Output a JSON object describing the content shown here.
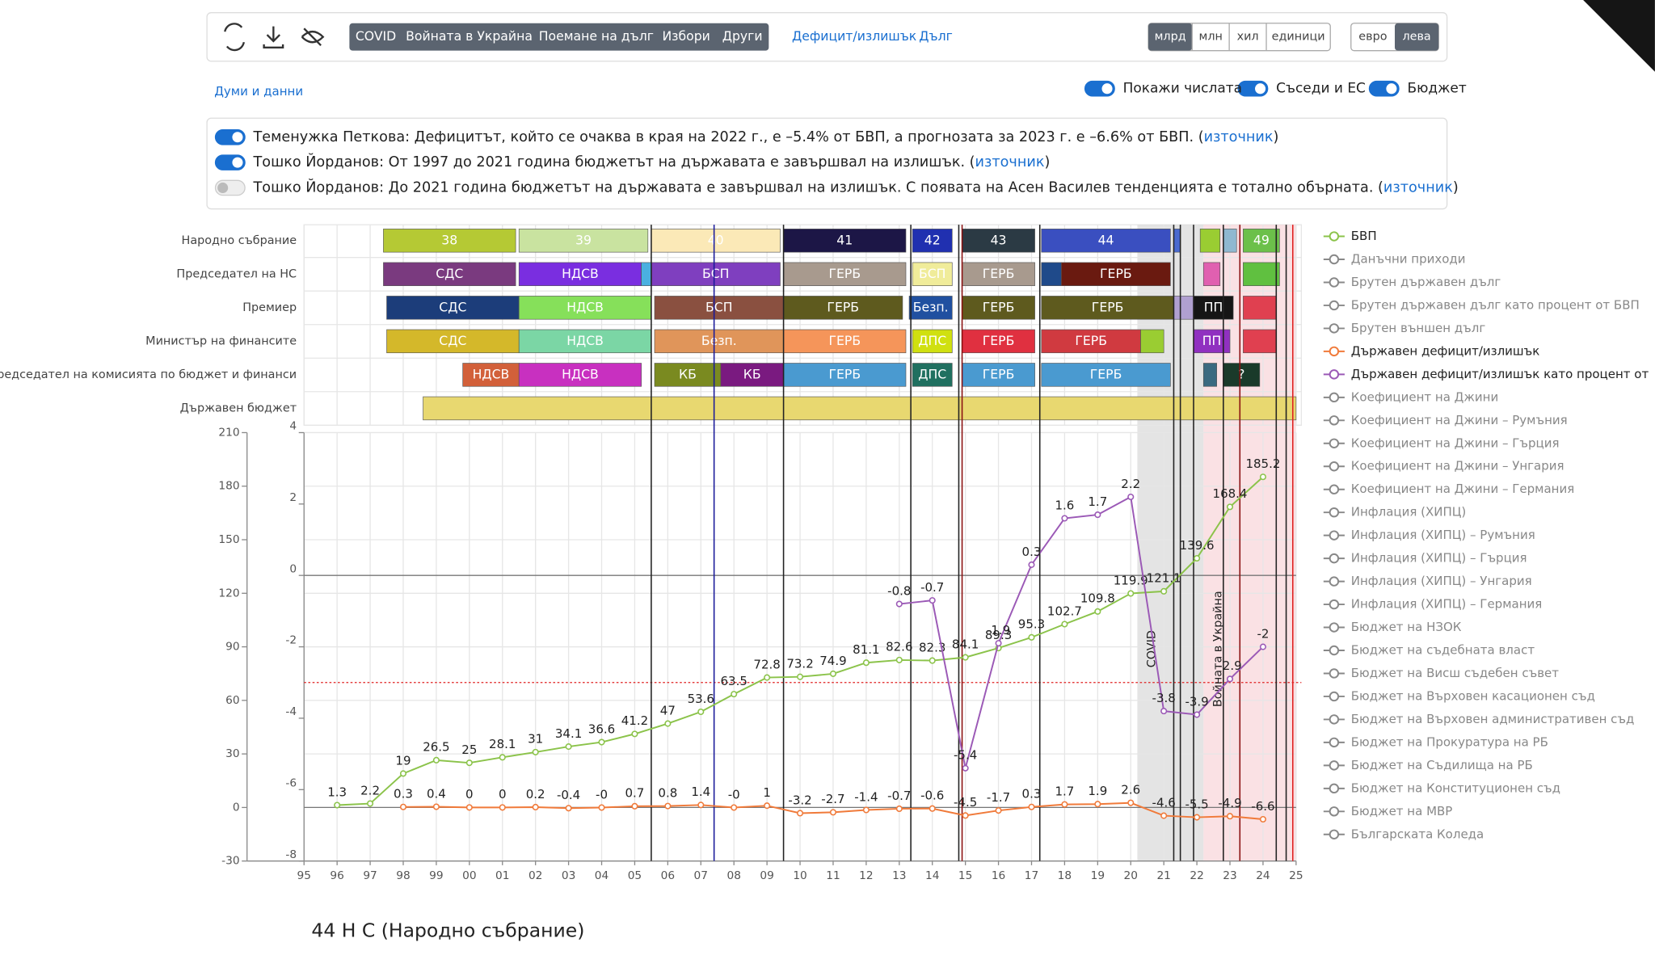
{
  "toolbar": {
    "topics": [
      "COVID",
      "Войната в Украйна",
      "Поемане на дълг",
      "Избори",
      "Други"
    ],
    "links": [
      "Дефицит/излишък",
      "Дълг"
    ],
    "units": [
      "млрд",
      "млн",
      "хил",
      "единици"
    ],
    "unit_active": 0,
    "currencies": [
      "евро",
      "лева"
    ],
    "currency_active": 1
  },
  "words_link": "Думи и данни",
  "toggles": [
    {
      "label": "Покажи числата",
      "on": true
    },
    {
      "label": "Съседи и ЕС",
      "on": true
    },
    {
      "label": "Бюджет",
      "on": true
    }
  ],
  "quotes": [
    {
      "on": true,
      "text": "Теменужка Петкова: Дефицитът, който се очаква в края на 2022 г., е –5.4% от БВП, а прогнозата за 2023 г. е –6.6% от БВП. (",
      "link": "източник",
      "after": ")"
    },
    {
      "on": true,
      "text": "Тошко Йорданов: От 1997 до 2021 година бюджетът на държавата е завършвал на излишък. (",
      "link": "източник",
      "after": ")"
    },
    {
      "on": false,
      "text": "Тошко Йорданов: До 2021 година бюджетът на държавата е завършвал на излишък. С появата на Асен Василев тенденцията е тотално обърната. (",
      "link": "източник",
      "after": ")"
    }
  ],
  "timeline": [
    {
      "label": "Народно събрание",
      "segments": [
        {
          "label": "38",
          "start": 1997.4,
          "end": 2001.4,
          "color": "#b5c934"
        },
        {
          "label": "39",
          "start": 2001.5,
          "end": 2005.4,
          "color": "#c9e3a0"
        },
        {
          "label": "40",
          "start": 2005.5,
          "end": 2009.4,
          "color": "#fbe9b7"
        },
        {
          "label": "41",
          "start": 2009.5,
          "end": 2013.2,
          "color": "#1c1646"
        },
        {
          "label": "42",
          "start": 2013.4,
          "end": 2014.6,
          "color": "#2030b0"
        },
        {
          "label": "43",
          "start": 2014.9,
          "end": 2017.1,
          "color": "#2b3a44"
        },
        {
          "label": "44",
          "start": 2017.3,
          "end": 2021.2,
          "color": "#3a4fc0"
        },
        {
          "label": null,
          "start": 2021.3,
          "end": 2021.5,
          "color": "#4a6ad0"
        },
        {
          "label": null,
          "start": 2022.1,
          "end": 2022.7,
          "color": "#9acd32"
        },
        {
          "label": null,
          "start": 2022.8,
          "end": 2023.2,
          "color": "#8fb8d0"
        },
        {
          "label": "49",
          "start": 2023.4,
          "end": 2024.5,
          "color": "#6cc04a"
        }
      ]
    },
    {
      "label": "Председател на НС",
      "segments": [
        {
          "label": "СДС",
          "start": 1997.4,
          "end": 2001.4,
          "color": "#7a3a7f"
        },
        {
          "label": "НДСВ",
          "start": 2001.5,
          "end": 2005.2,
          "color": "#7a2ee0"
        },
        {
          "label": null,
          "start": 2005.2,
          "end": 2005.5,
          "color": "#4ab0e0"
        },
        {
          "label": "БСП",
          "start": 2005.5,
          "end": 2009.4,
          "color": "#7f3fbf"
        },
        {
          "label": "ГЕРБ",
          "start": 2009.5,
          "end": 2013.2,
          "color": "#a89a8e"
        },
        {
          "label": "БСП",
          "start": 2013.4,
          "end": 2014.6,
          "color": "#f0ec9a"
        },
        {
          "label": "ГЕРБ",
          "start": 2014.9,
          "end": 2017.1,
          "color": "#a89a8e"
        },
        {
          "label": null,
          "start": 2017.3,
          "end": 2017.9,
          "color": "#1f4a8a"
        },
        {
          "label": "ГЕРБ",
          "start": 2017.9,
          "end": 2021.2,
          "color": "#6a1a10"
        },
        {
          "label": null,
          "start": 2022.2,
          "end": 2022.7,
          "color": "#e060b0"
        },
        {
          "label": null,
          "start": 2023.4,
          "end": 2024.5,
          "color": "#60c040"
        }
      ]
    },
    {
      "label": "Премиер",
      "segments": [
        {
          "label": "СДС",
          "start": 1997.5,
          "end": 2001.5,
          "color": "#1c3d7a"
        },
        {
          "label": "НДСВ",
          "start": 2001.5,
          "end": 2005.5,
          "color": "#86e05a"
        },
        {
          "label": "БСП",
          "start": 2005.6,
          "end": 2009.5,
          "color": "#8a5040"
        },
        {
          "label": "ГЕРБ",
          "start": 2009.5,
          "end": 2013.1,
          "color": "#5e5a1e"
        },
        {
          "label": "Безп.",
          "start": 2013.3,
          "end": 2014.6,
          "color": "#2050a0"
        },
        {
          "label": "ГЕРБ",
          "start": 2014.9,
          "end": 2017.1,
          "color": "#5e5a1e"
        },
        {
          "label": "ГЕРБ",
          "start": 2017.3,
          "end": 2021.3,
          "color": "#5e5a1e"
        },
        {
          "label": null,
          "start": 2021.3,
          "end": 2021.9,
          "color": "#b0a0d0"
        },
        {
          "label": "ПП",
          "start": 2021.9,
          "end": 2023.1,
          "color": "#151515"
        },
        {
          "label": null,
          "start": 2023.4,
          "end": 2024.4,
          "color": "#e04050"
        }
      ]
    },
    {
      "label": "Министър на финансите",
      "segments": [
        {
          "label": "СДС",
          "start": 1997.5,
          "end": 2001.5,
          "color": "#d4b82a"
        },
        {
          "label": "НДСВ",
          "start": 2001.5,
          "end": 2005.5,
          "color": "#7bd6a5"
        },
        {
          "label": "Безп.",
          "start": 2005.6,
          "end": 2009.5,
          "color": "#e0955a"
        },
        {
          "label": "ГЕРБ",
          "start": 2009.5,
          "end": 2013.2,
          "color": "#f5955a"
        },
        {
          "label": "ДПС",
          "start": 2013.4,
          "end": 2014.6,
          "color": "#d0e010"
        },
        {
          "label": "ГЕРБ",
          "start": 2014.9,
          "end": 2017.1,
          "color": "#e03040"
        },
        {
          "label": "ГЕРБ",
          "start": 2017.3,
          "end": 2020.3,
          "color": "#d03a40"
        },
        {
          "label": null,
          "start": 2020.3,
          "end": 2021.0,
          "color": "#9acd32"
        },
        {
          "label": "ПП",
          "start": 2021.9,
          "end": 2023.0,
          "color": "#9030c0"
        },
        {
          "label": null,
          "start": 2023.4,
          "end": 2024.4,
          "color": "#e04050"
        }
      ]
    },
    {
      "label": "Председател на комисията по бюджет и финанси",
      "segments": [
        {
          "label": "НДСВ",
          "start": 1999.8,
          "end": 2001.5,
          "color": "#d2603a"
        },
        {
          "label": "НДСВ",
          "start": 2001.5,
          "end": 2005.2,
          "color": "#c830c0"
        },
        {
          "label": "КБ",
          "start": 2005.6,
          "end": 2007.6,
          "color": "#7a8a20"
        },
        {
          "label": "КБ",
          "start": 2007.6,
          "end": 2009.5,
          "color": "#7a1a80"
        },
        {
          "label": "ГЕРБ",
          "start": 2009.5,
          "end": 2013.2,
          "color": "#4a9ad0"
        },
        {
          "label": "ДПС",
          "start": 2013.4,
          "end": 2014.6,
          "color": "#207060"
        },
        {
          "label": "ГЕРБ",
          "start": 2014.9,
          "end": 2017.1,
          "color": "#4a9ad0"
        },
        {
          "label": "ГЕРБ",
          "start": 2017.3,
          "end": 2021.2,
          "color": "#4a9ad0"
        },
        {
          "label": null,
          "start": 2022.2,
          "end": 2022.6,
          "color": "#3a6a80"
        },
        {
          "label": "?",
          "start": 2022.8,
          "end": 2023.9,
          "color": "#1a3a2a"
        }
      ]
    },
    {
      "label": "Държавен бюджет",
      "segments": [
        {
          "label": null,
          "start": 1998.6,
          "end": 2025.0,
          "color": "#e8d870"
        }
      ]
    }
  ],
  "chart_data": {
    "type": "line",
    "xlim": [
      1995,
      2025
    ],
    "xticks": [
      {
        "value": 1995,
        "label": "95"
      },
      {
        "value": 1996,
        "label": "96"
      },
      {
        "value": 1997,
        "label": "97"
      },
      {
        "value": 1998,
        "label": "98"
      },
      {
        "value": 1999,
        "label": "99"
      },
      {
        "value": 2000,
        "label": "00"
      },
      {
        "value": 2001,
        "label": "01"
      },
      {
        "value": 2002,
        "label": "02"
      },
      {
        "value": 2003,
        "label": "03"
      },
      {
        "value": 2004,
        "label": "04"
      },
      {
        "value": 2005,
        "label": "05"
      },
      {
        "value": 2006,
        "label": "06"
      },
      {
        "value": 2007,
        "label": "07"
      },
      {
        "value": 2008,
        "label": "08"
      },
      {
        "value": 2009,
        "label": "09"
      },
      {
        "value": 2010,
        "label": "10"
      },
      {
        "value": 2011,
        "label": "11"
      },
      {
        "value": 2012,
        "label": "12"
      },
      {
        "value": 2013,
        "label": "13"
      },
      {
        "value": 2014,
        "label": "14"
      },
      {
        "value": 2015,
        "label": "15"
      },
      {
        "value": 2016,
        "label": "16"
      },
      {
        "value": 2017,
        "label": "17"
      },
      {
        "value": 2018,
        "label": "18"
      },
      {
        "value": 2019,
        "label": "19"
      },
      {
        "value": 2020,
        "label": "20"
      },
      {
        "value": 2021,
        "label": "21"
      },
      {
        "value": 2022,
        "label": "22"
      },
      {
        "value": 2023,
        "label": "23"
      },
      {
        "value": 2024,
        "label": "24"
      },
      {
        "value": 2025,
        "label": "25"
      }
    ],
    "ylim": [
      -30,
      210
    ],
    "yticks": [
      -30,
      0,
      30,
      60,
      90,
      120,
      150,
      180,
      210
    ],
    "y2lim": [
      -8,
      4
    ],
    "y2ticks": [
      -8,
      -6,
      -4,
      -2,
      0,
      2,
      4
    ],
    "grid": true,
    "reference_line_y2": -3,
    "series": [
      {
        "name": "БВП",
        "color": "#8bc34a",
        "x": [
          1996,
          1997,
          1998,
          1999,
          2000,
          2001,
          2002,
          2003,
          2004,
          2005,
          2006,
          2007,
          2008,
          2009,
          2010,
          2011,
          2012,
          2013,
          2014,
          2015,
          2016,
          2017,
          2018,
          2019,
          2020,
          2021,
          2022,
          2023,
          2024
        ],
        "values": [
          1.3,
          2.2,
          19,
          26.5,
          25,
          28.1,
          31,
          34.1,
          36.6,
          41.2,
          47,
          53.6,
          63.5,
          72.8,
          73.2,
          74.9,
          81.1,
          82.6,
          82.3,
          84.1,
          89.3,
          95.3,
          102.7,
          109.8,
          119.9,
          121.1,
          139.6,
          168.4,
          185.2
        ]
      },
      {
        "name": "Държавен дефицит/излишък",
        "color": "#f07a3a",
        "x": [
          1998,
          1999,
          2000,
          2001,
          2002,
          2003,
          2004,
          2005,
          2006,
          2007,
          2008,
          2009,
          2010,
          2011,
          2012,
          2013,
          2014,
          2015,
          2016,
          2017,
          2018,
          2019,
          2020,
          2021,
          2022,
          2023,
          2024
        ],
        "values": [
          0.3,
          0.4,
          0,
          0,
          0.2,
          -0.4,
          -0.04,
          0.7,
          0.8,
          1.4,
          -0.04,
          1,
          -3.2,
          -2.7,
          -1.4,
          -0.7,
          -0.6,
          -4.5,
          -1.7,
          0.3,
          1.7,
          1.9,
          2.6,
          -4.6,
          -5.5,
          -4.9,
          -6.6
        ],
        "value_labels": [
          "0.3",
          "0.4",
          "0",
          "0",
          "0.2",
          "-0.4",
          "-0",
          "0.7",
          "0.8",
          "1.4",
          "-0",
          "1",
          "-3.2",
          "-2.7",
          "-1.4",
          "-0.7",
          "-0.6",
          "-4.5",
          "-1.7",
          "0.3",
          "1.7",
          "1.9",
          "2.6",
          "-4.6",
          "-5.5",
          "-4.9",
          "-6.6"
        ]
      },
      {
        "name": "Държавен дефицит/излишък като процент от",
        "color": "#9b59b6",
        "axis": "y2",
        "x": [
          2013,
          2014,
          2015,
          2016,
          2017,
          2018,
          2019,
          2020,
          2021,
          2022,
          2023,
          2024
        ],
        "values": [
          -0.8,
          -0.7,
          -5.4,
          -1.9,
          0.3,
          1.6,
          1.7,
          2.2,
          -3.8,
          -3.9,
          -2.9,
          -2
        ]
      }
    ],
    "legend_inactive": [
      "Данъчни приходи",
      "Брутен държавен дълг",
      "Брутен държавен дълг като процент от БВП",
      "Брутен външен дълг",
      "Коефициент на Джини",
      "Коефициент на Джини – Румъния",
      "Коефициент на Джини – Гърция",
      "Коефициент на Джини – Унгария",
      "Коефициент на Джини – Германия",
      "Инфлация (ХИПЦ)",
      "Инфлация (ХИПЦ) – Румъния",
      "Инфлация (ХИПЦ) – Гърция",
      "Инфлация (ХИПЦ) – Унгария",
      "Инфлация (ХИПЦ) – Германия",
      "Бюджет на НЗОК",
      "Бюджет на съдебната власт",
      "Бюджет на Висш съдебен съвет",
      "Бюджет на Върховен касационен съд",
      "Бюджет на Върховен административен съд",
      "Бюджет на Прокуратура на РБ",
      "Бюджет на Съдилища на РБ",
      "Бюджет на Конституционен съд",
      "Бюджет на МВР",
      "Българската Коледа"
    ],
    "event_lines": [
      {
        "x": 2005.5,
        "color": "#222"
      },
      {
        "x": 2007.4,
        "color": "#1a1a9a"
      },
      {
        "x": 2009.5,
        "color": "#222"
      },
      {
        "x": 2013.35,
        "color": "#222"
      },
      {
        "x": 2014.8,
        "color": "#222"
      },
      {
        "x": 2014.9,
        "color": "#8a1010"
      },
      {
        "x": 2017.25,
        "color": "#222"
      },
      {
        "x": 2021.3,
        "color": "#222"
      },
      {
        "x": 2021.5,
        "color": "#222"
      },
      {
        "x": 2021.9,
        "color": "#222"
      },
      {
        "x": 2022.8,
        "color": "#222"
      },
      {
        "x": 2023.3,
        "color": "#8a1010"
      },
      {
        "x": 2024.4,
        "color": "#222"
      },
      {
        "x": 2024.7,
        "color": "#222"
      },
      {
        "x": 2024.9,
        "color": "#e02020"
      }
    ],
    "annotations": [
      {
        "label": "COVID",
        "start": 2020.2,
        "end": 2022.2,
        "color": "#d8d8d8"
      },
      {
        "label": "Войната в Украйна",
        "start": 2022.2,
        "end": 2025.0,
        "color": "#f8d4d8"
      }
    ]
  },
  "footer": "44 Н С (Народно събрание)"
}
